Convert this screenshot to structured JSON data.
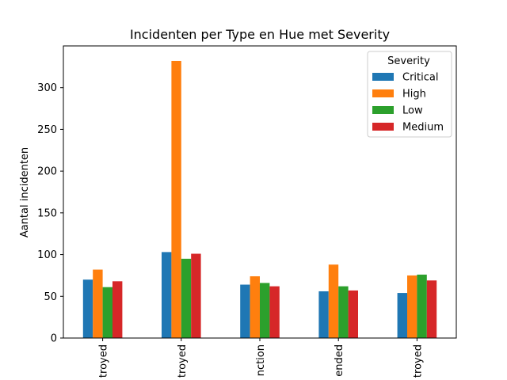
{
  "chart_data": {
    "type": "bar",
    "title": "Incidenten per Type en Hue met Severity",
    "xlabel": "",
    "ylabel": "Aantal incidenten",
    "ylim": [
      0,
      350
    ],
    "yticks": [
      0,
      50,
      100,
      150,
      200,
      250,
      300
    ],
    "categories": [
      "troyed",
      "troyed",
      "nction",
      "ended",
      "troyed"
    ],
    "legend_title": "Severity",
    "legend_position": "top-right",
    "grid": false,
    "series": [
      {
        "name": "Critical",
        "color": "#1f77b4",
        "values": [
          70,
          103,
          64,
          56,
          54
        ]
      },
      {
        "name": "High",
        "color": "#ff7f0e",
        "values": [
          82,
          332,
          74,
          88,
          75
        ]
      },
      {
        "name": "Low",
        "color": "#2ca02c",
        "values": [
          61,
          95,
          66,
          62,
          76
        ]
      },
      {
        "name": "Medium",
        "color": "#d62728",
        "values": [
          68,
          101,
          62,
          57,
          69
        ]
      }
    ]
  }
}
